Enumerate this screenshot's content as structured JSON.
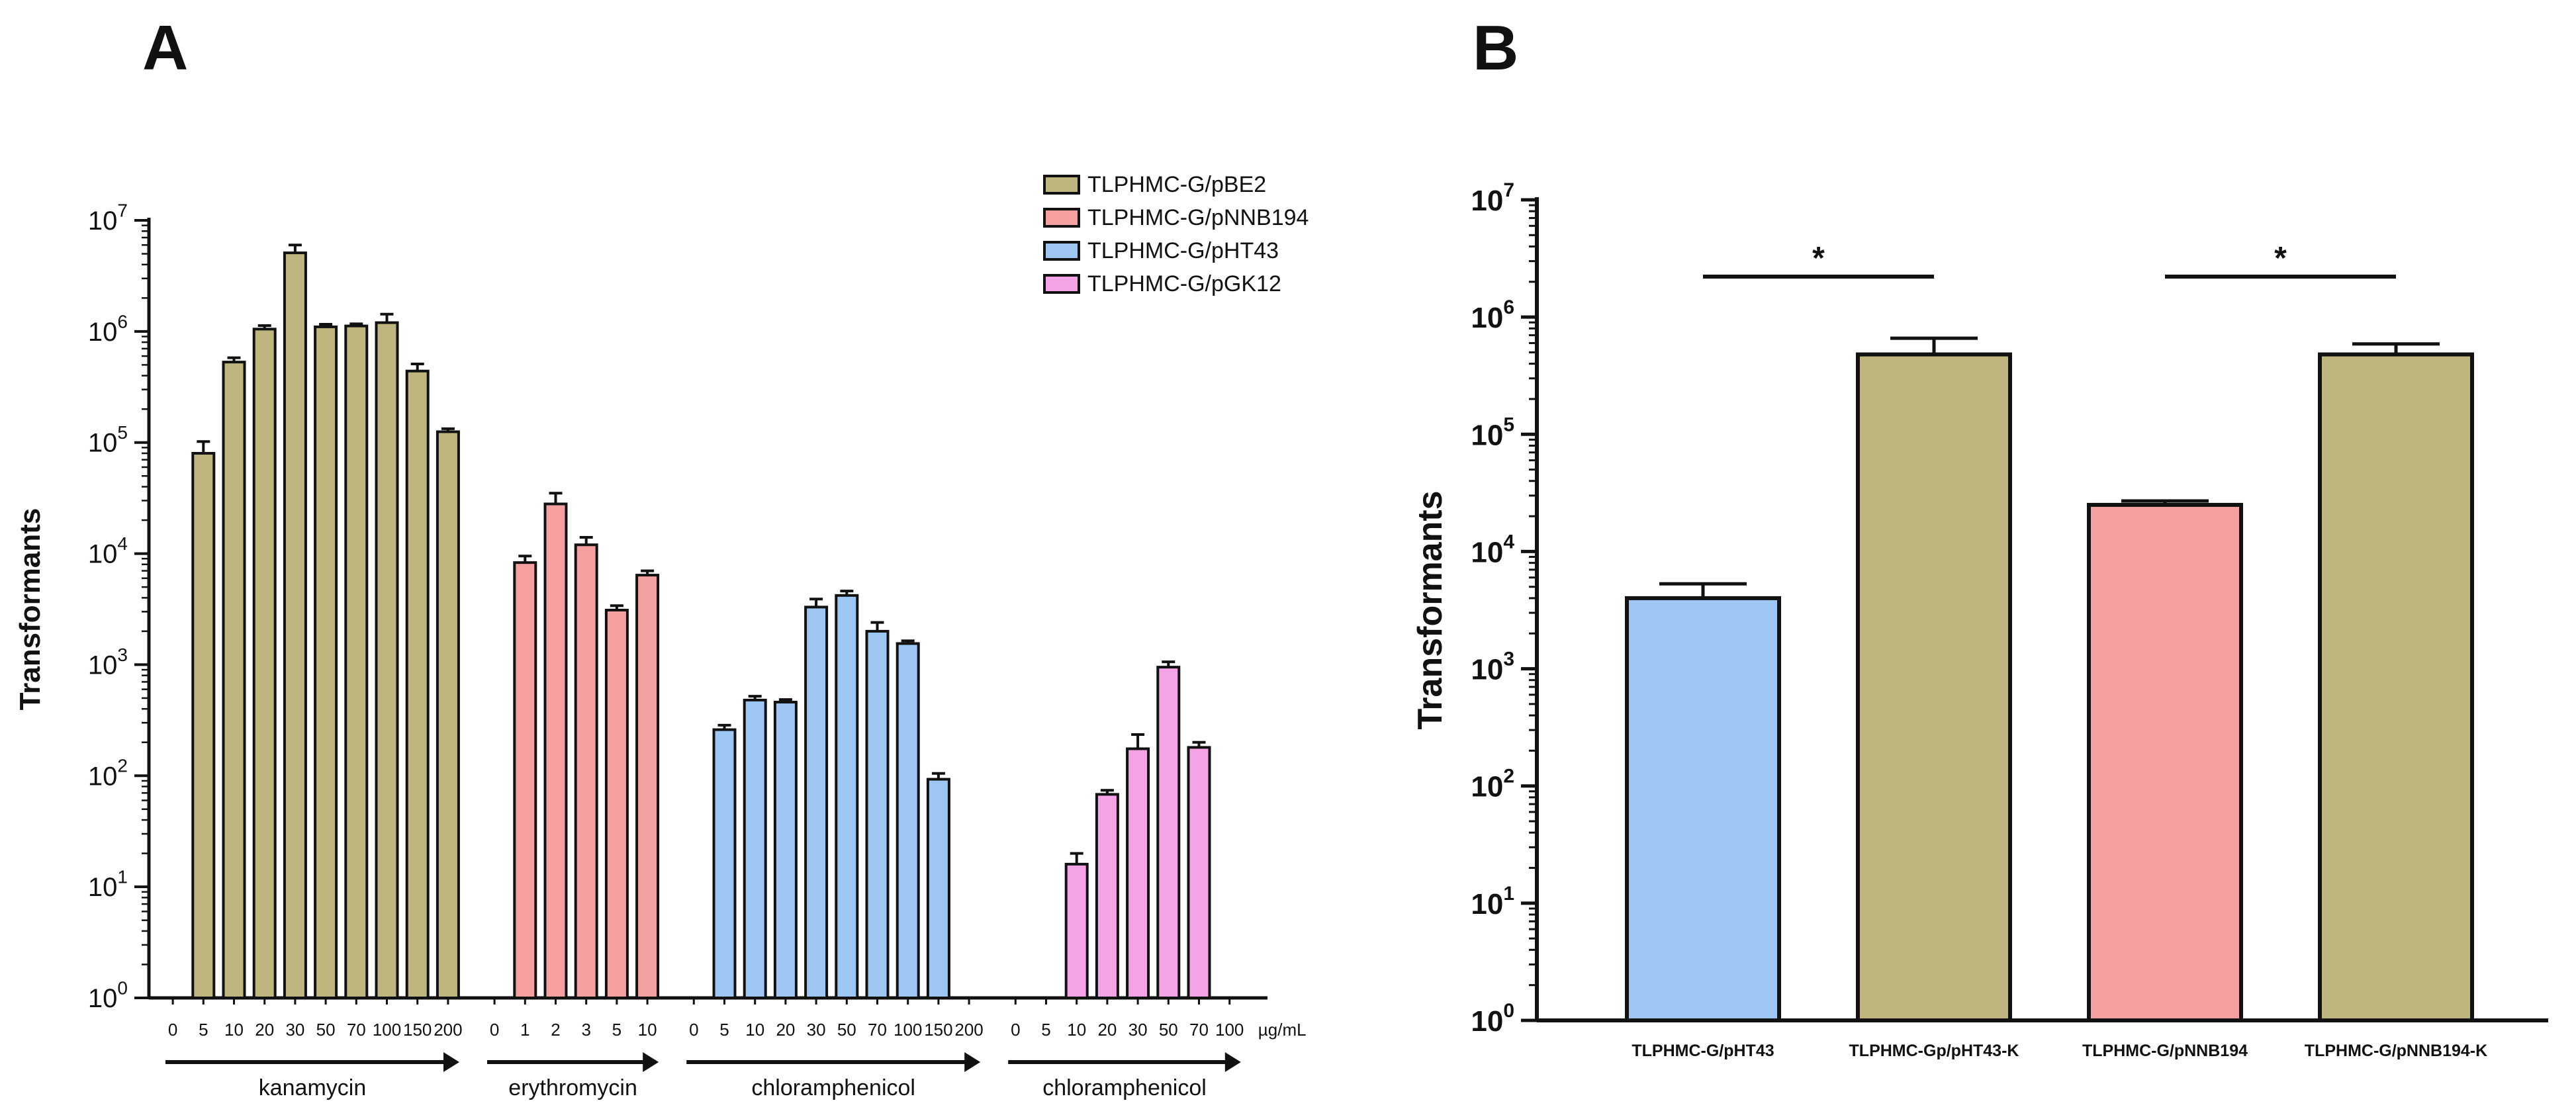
{
  "panels": {
    "a": {
      "letter": "A"
    },
    "b": {
      "letter": "B"
    }
  },
  "chart_data": [
    {
      "panel": "A",
      "type": "bar",
      "yscale": "log",
      "ylabel": "Transformants",
      "ylim": [
        1,
        10000000
      ],
      "ytick_exponents": [
        "0",
        "1",
        "2",
        "3",
        "4",
        "5",
        "6",
        "7"
      ],
      "ytick_base": "10",
      "unit_label": "µg/mL",
      "legend_position": "top-right",
      "series": [
        {
          "name": "TLPHMC-G/pBE2",
          "color": "#bfb57f",
          "group_label": "kanamycin",
          "categories": [
            "0",
            "5",
            "10",
            "20",
            "30",
            "50",
            "70",
            "100",
            "150",
            "200"
          ],
          "values": [
            0,
            80000,
            530000,
            1050000,
            5100000,
            1100000,
            1120000,
            1200000,
            440000,
            125000
          ],
          "errors": [
            0,
            22000,
            50000,
            80000,
            900000,
            60000,
            50000,
            230000,
            70000,
            8000
          ]
        },
        {
          "name": "TLPHMC-G/pNNB194",
          "color": "#f5a0a0",
          "group_label": "erythromycin",
          "categories": [
            "0",
            "1",
            "2",
            "3",
            "5",
            "10"
          ],
          "values": [
            0,
            8300,
            28000,
            12000,
            3100,
            6400
          ],
          "errors": [
            0,
            1200,
            7000,
            2000,
            300,
            600
          ]
        },
        {
          "name": "TLPHMC-G/pHT43",
          "color": "#9ec6f3",
          "group_label": "chloramphenicol",
          "categories": [
            "0",
            "5",
            "10",
            "20",
            "30",
            "50",
            "70",
            "100",
            "150",
            "200"
          ],
          "values": [
            0,
            260,
            480,
            460,
            3300,
            4200,
            2000,
            1550,
            93,
            0
          ],
          "errors": [
            0,
            25,
            40,
            25,
            600,
            400,
            400,
            90,
            12,
            0
          ]
        },
        {
          "name": "TLPHMC-G/pGK12",
          "color": "#f4a3e6",
          "group_label": "chloramphenicol",
          "categories": [
            "0",
            "5",
            "10",
            "20",
            "30",
            "50",
            "70",
            "100"
          ],
          "values": [
            0,
            0,
            16,
            68,
            175,
            950,
            180,
            0
          ],
          "errors": [
            0,
            0,
            4,
            6,
            60,
            110,
            20,
            0
          ]
        }
      ]
    },
    {
      "panel": "B",
      "type": "bar",
      "yscale": "log",
      "ylabel": "Transformants",
      "ylim": [
        1,
        10000000
      ],
      "ytick_exponents": [
        "0",
        "1",
        "2",
        "3",
        "4",
        "5",
        "6",
        "7"
      ],
      "ytick_base": "10",
      "categories": [
        "TLPHMC-G/pHT43",
        "TLPHMC-Gp/pHT43-K",
        "TLPHMC-G/pNNB194",
        "TLPHMC-G/pNNB194-K"
      ],
      "values": [
        4000,
        480000,
        25000,
        480000
      ],
      "errors": [
        1300,
        180000,
        2000,
        110000
      ],
      "colors": [
        "#9ec6f3",
        "#bfb57f",
        "#f5a0a0",
        "#bfb57f"
      ],
      "significance": [
        {
          "pair": [
            0,
            1
          ],
          "label": "*"
        },
        {
          "pair": [
            2,
            3
          ],
          "label": "*"
        }
      ]
    }
  ]
}
